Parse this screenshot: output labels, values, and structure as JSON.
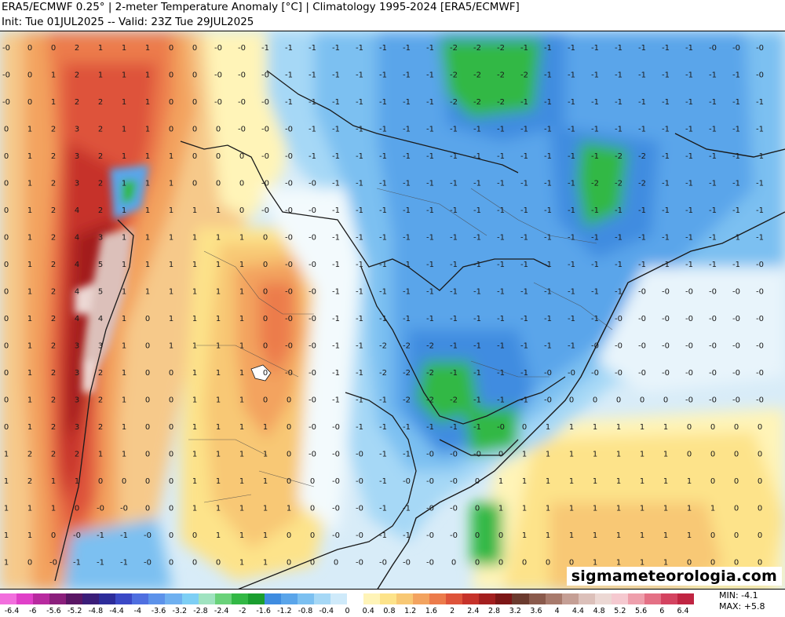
{
  "header": {
    "title": "ERA5/ECMWF 0.25° | 2-meter Temperature Anomaly [°C] | Climatology 1995-2024 [ERA5/ECMWF]",
    "subtitle": "Init: Tue 01JUL2025 -- Valid: 23Z Tue 29JUL2025"
  },
  "watermark": "sigmameteorologia.com",
  "stats": {
    "min_label": "MIN: -4.1",
    "max_label": "MAX: +5.8"
  },
  "colorbar": {
    "ticks": [
      "-6.4",
      "-6",
      "-5.6",
      "-5.2",
      "-4.8",
      "-4.4",
      "-4",
      "-3.6",
      "-3.2",
      "-2.8",
      "-2.4",
      "-2",
      "-1.6",
      "-1.2",
      "-0.8",
      "-0.4",
      "0",
      "0.4",
      "0.8",
      "1.2",
      "1.6",
      "2",
      "2.4",
      "2.8",
      "3.2",
      "3.6",
      "4",
      "4.4",
      "4.8",
      "5.2",
      "5.6",
      "6",
      "6.4"
    ],
    "colors": [
      "#f26fdd",
      "#e040c8",
      "#b82a9f",
      "#8b1f7c",
      "#5a1664",
      "#3b1d78",
      "#2d2c9a",
      "#3b49c6",
      "#4f6fe0",
      "#5c92ea",
      "#6fb0f0",
      "#7ecff5",
      "#a0e3c0",
      "#6ad27a",
      "#33b845",
      "#1a9e2f",
      "#3f8ce0",
      "#5aa5ea",
      "#7cc0f1",
      "#a6d8f6",
      "#cfeafa",
      "#ffffff",
      "#fff4b8",
      "#fde38a",
      "#f8c874",
      "#f3a35f",
      "#ec7b4b",
      "#de533a",
      "#c6322a",
      "#a31f1f",
      "#7c1616",
      "#6b3a2e",
      "#8a5a4c",
      "#a87a6c",
      "#c59f95",
      "#dcc0ba",
      "#ecd8d4",
      "#f5c9d0",
      "#ee9fac",
      "#e47085",
      "#d44360",
      "#c02542"
    ]
  },
  "map": {
    "region": "South America anomaly field",
    "grid_values": [
      [
        "-0",
        "0",
        "0",
        "2",
        "1",
        "1",
        "1",
        "0",
        "0",
        "-0",
        "-0",
        "-1",
        "-1",
        "-1",
        "-1",
        "-1",
        "-1",
        "-1",
        "-1",
        "-2",
        "-2",
        "-2",
        "-1",
        "-1",
        "-1",
        "-1",
        "-1",
        "-1",
        "-1",
        "-1",
        "-0",
        "-0",
        "-0"
      ],
      [
        "-0",
        "0",
        "1",
        "2",
        "1",
        "1",
        "1",
        "0",
        "0",
        "-0",
        "-0",
        "-0",
        "-1",
        "-1",
        "-1",
        "-1",
        "-1",
        "-1",
        "-1",
        "-2",
        "-2",
        "-2",
        "-2",
        "-1",
        "-1",
        "-1",
        "-1",
        "-1",
        "-1",
        "-1",
        "-1",
        "-1",
        "-0"
      ],
      [
        "-0",
        "0",
        "1",
        "2",
        "2",
        "1",
        "1",
        "0",
        "0",
        "-0",
        "-0",
        "-0",
        "-1",
        "-1",
        "-1",
        "-1",
        "-1",
        "-1",
        "-1",
        "-2",
        "-2",
        "-2",
        "-1",
        "-1",
        "-1",
        "-1",
        "-1",
        "-1",
        "-1",
        "-1",
        "-1",
        "-1",
        "-1"
      ],
      [
        "0",
        "1",
        "2",
        "3",
        "2",
        "1",
        "1",
        "0",
        "0",
        "0",
        "-0",
        "-0",
        "-0",
        "-1",
        "-1",
        "-1",
        "-1",
        "-1",
        "-1",
        "-1",
        "-1",
        "-1",
        "-1",
        "-1",
        "-1",
        "-1",
        "-1",
        "-1",
        "-1",
        "-1",
        "-1",
        "-1",
        "-1"
      ],
      [
        "0",
        "1",
        "2",
        "3",
        "2",
        "1",
        "1",
        "1",
        "0",
        "0",
        "0",
        "-0",
        "-0",
        "-1",
        "-1",
        "-1",
        "-1",
        "-1",
        "-1",
        "-1",
        "-1",
        "-1",
        "-1",
        "-1",
        "-1",
        "-1",
        "-2",
        "-2",
        "-1",
        "-1",
        "-1",
        "-1",
        "-1"
      ],
      [
        "0",
        "1",
        "2",
        "3",
        "2",
        "1",
        "1",
        "1",
        "0",
        "0",
        "0",
        "-0",
        "-0",
        "-0",
        "-1",
        "-1",
        "-1",
        "-1",
        "-1",
        "-1",
        "-1",
        "-1",
        "-1",
        "-1",
        "-1",
        "-2",
        "-2",
        "-2",
        "-1",
        "-1",
        "-1",
        "-1",
        "-1"
      ],
      [
        "0",
        "1",
        "2",
        "4",
        "2",
        "1",
        "1",
        "1",
        "1",
        "1",
        "0",
        "-0",
        "-0",
        "-0",
        "-1",
        "-1",
        "-1",
        "-1",
        "-1",
        "-1",
        "-1",
        "-1",
        "-1",
        "-1",
        "-1",
        "-1",
        "-1",
        "-1",
        "-1",
        "-1",
        "-1",
        "-1",
        "-1"
      ],
      [
        "0",
        "1",
        "2",
        "4",
        "3",
        "1",
        "1",
        "1",
        "1",
        "1",
        "1",
        "0",
        "-0",
        "-0",
        "-1",
        "-1",
        "-1",
        "-1",
        "-1",
        "-1",
        "-1",
        "-1",
        "-1",
        "-1",
        "-1",
        "-1",
        "-1",
        "-1",
        "-1",
        "-1",
        "-1",
        "-1",
        "-1"
      ],
      [
        "0",
        "1",
        "2",
        "4",
        "5",
        "1",
        "1",
        "1",
        "1",
        "1",
        "1",
        "0",
        "-0",
        "-0",
        "-1",
        "-1",
        "-1",
        "-1",
        "-1",
        "-1",
        "-1",
        "-1",
        "-1",
        "-1",
        "-1",
        "-1",
        "-1",
        "-1",
        "-1",
        "-1",
        "-1",
        "-1",
        "-0"
      ],
      [
        "0",
        "1",
        "2",
        "4",
        "5",
        "1",
        "1",
        "1",
        "1",
        "1",
        "1",
        "0",
        "-0",
        "-0",
        "-1",
        "-1",
        "-1",
        "-1",
        "-1",
        "-1",
        "-1",
        "-1",
        "-1",
        "-1",
        "-1",
        "-1",
        "-1",
        "-0",
        "-0",
        "-0",
        "-0",
        "-0",
        "-0"
      ],
      [
        "0",
        "1",
        "2",
        "4",
        "4",
        "1",
        "0",
        "1",
        "1",
        "1",
        "1",
        "0",
        "-0",
        "-0",
        "-1",
        "-1",
        "-1",
        "-1",
        "-1",
        "-1",
        "-1",
        "-1",
        "-1",
        "-1",
        "-1",
        "-1",
        "-0",
        "-0",
        "-0",
        "-0",
        "-0",
        "-0",
        "-0"
      ],
      [
        "0",
        "1",
        "2",
        "3",
        "3",
        "1",
        "0",
        "1",
        "1",
        "1",
        "1",
        "0",
        "-0",
        "-0",
        "-1",
        "-1",
        "-2",
        "-2",
        "-2",
        "-1",
        "-1",
        "-1",
        "-1",
        "-1",
        "-1",
        "-0",
        "-0",
        "-0",
        "-0",
        "-0",
        "-0",
        "-0",
        "-0"
      ],
      [
        "0",
        "1",
        "2",
        "3",
        "2",
        "1",
        "0",
        "0",
        "1",
        "1",
        "1",
        "0",
        "-0",
        "-0",
        "-1",
        "-1",
        "-2",
        "-2",
        "-2",
        "-1",
        "-1",
        "-1",
        "-1",
        "-0",
        "-0",
        "-0",
        "-0",
        "-0",
        "-0",
        "-0",
        "-0",
        "-0",
        "-0"
      ],
      [
        "0",
        "1",
        "2",
        "3",
        "2",
        "1",
        "0",
        "0",
        "1",
        "1",
        "1",
        "0",
        "0",
        "-0",
        "-1",
        "-1",
        "-1",
        "-2",
        "-2",
        "-2",
        "-1",
        "-1",
        "-1",
        "-0",
        "0",
        "0",
        "0",
        "0",
        "0",
        "-0",
        "-0",
        "-0",
        "-0"
      ],
      [
        "0",
        "1",
        "2",
        "3",
        "2",
        "1",
        "0",
        "0",
        "1",
        "1",
        "1",
        "1",
        "0",
        "-0",
        "-0",
        "-1",
        "-1",
        "-1",
        "-1",
        "-1",
        "-1",
        "-0",
        "0",
        "1",
        "1",
        "1",
        "1",
        "1",
        "1",
        "0",
        "0",
        "0",
        "0"
      ],
      [
        "1",
        "2",
        "2",
        "2",
        "1",
        "1",
        "0",
        "0",
        "1",
        "1",
        "1",
        "1",
        "0",
        "-0",
        "-0",
        "-0",
        "-1",
        "-1",
        "-0",
        "-0",
        "-0",
        "0",
        "1",
        "1",
        "1",
        "1",
        "1",
        "1",
        "1",
        "0",
        "0",
        "0",
        "0"
      ],
      [
        "1",
        "2",
        "1",
        "1",
        "0",
        "0",
        "0",
        "0",
        "1",
        "1",
        "1",
        "1",
        "0",
        "0",
        "-0",
        "-0",
        "-1",
        "-0",
        "-0",
        "-0",
        "0",
        "1",
        "1",
        "1",
        "1",
        "1",
        "1",
        "1",
        "1",
        "1",
        "0",
        "0",
        "0"
      ],
      [
        "1",
        "1",
        "1",
        "0",
        "-0",
        "-0",
        "0",
        "0",
        "1",
        "1",
        "1",
        "1",
        "1",
        "0",
        "-0",
        "-0",
        "-1",
        "-1",
        "-0",
        "-0",
        "0",
        "1",
        "1",
        "1",
        "1",
        "1",
        "1",
        "1",
        "1",
        "1",
        "1",
        "0",
        "0"
      ],
      [
        "1",
        "1",
        "0",
        "-0",
        "-1",
        "-1",
        "-0",
        "0",
        "0",
        "1",
        "1",
        "1",
        "0",
        "0",
        "-0",
        "-0",
        "-1",
        "-1",
        "-0",
        "-0",
        "0",
        "0",
        "1",
        "1",
        "1",
        "1",
        "1",
        "1",
        "1",
        "1",
        "0",
        "0",
        "0"
      ],
      [
        "1",
        "0",
        "-0",
        "-1",
        "-1",
        "-1",
        "-0",
        "0",
        "0",
        "0",
        "1",
        "1",
        "0",
        "0",
        "0",
        "-0",
        "-0",
        "-0",
        "-0",
        "0",
        "0",
        "0",
        "0",
        "0",
        "0",
        "1",
        "1",
        "1",
        "1",
        "0",
        "0",
        "0",
        "0"
      ]
    ]
  }
}
